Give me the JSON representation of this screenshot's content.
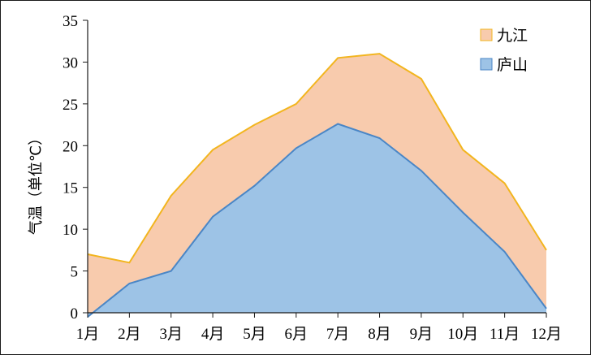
{
  "chart_data": {
    "type": "area",
    "categories": [
      "1月",
      "2月",
      "3月",
      "4月",
      "5月",
      "6月",
      "7月",
      "8月",
      "9月",
      "10月",
      "11月",
      "12月"
    ],
    "series": [
      {
        "name": "九江",
        "values": [
          7.0,
          6.0,
          14.0,
          19.5,
          22.5,
          25.0,
          30.5,
          31.0,
          28.0,
          19.5,
          15.5,
          7.5
        ],
        "fill": "#f8cbad",
        "stroke": "#f2b51e"
      },
      {
        "name": "庐山",
        "values": [
          -0.5,
          3.5,
          5.0,
          11.5,
          15.2,
          19.7,
          22.6,
          20.9,
          17.0,
          12.0,
          7.3,
          0.5
        ],
        "fill": "#9dc3e6",
        "stroke": "#4a86c6"
      }
    ],
    "ylabel": "气温（单位℃）",
    "xlabel": "",
    "ylim": [
      0,
      35
    ],
    "yticks": [
      0,
      5,
      10,
      15,
      20,
      25,
      30,
      35
    ],
    "grid": false,
    "legend_position": "top-right"
  }
}
